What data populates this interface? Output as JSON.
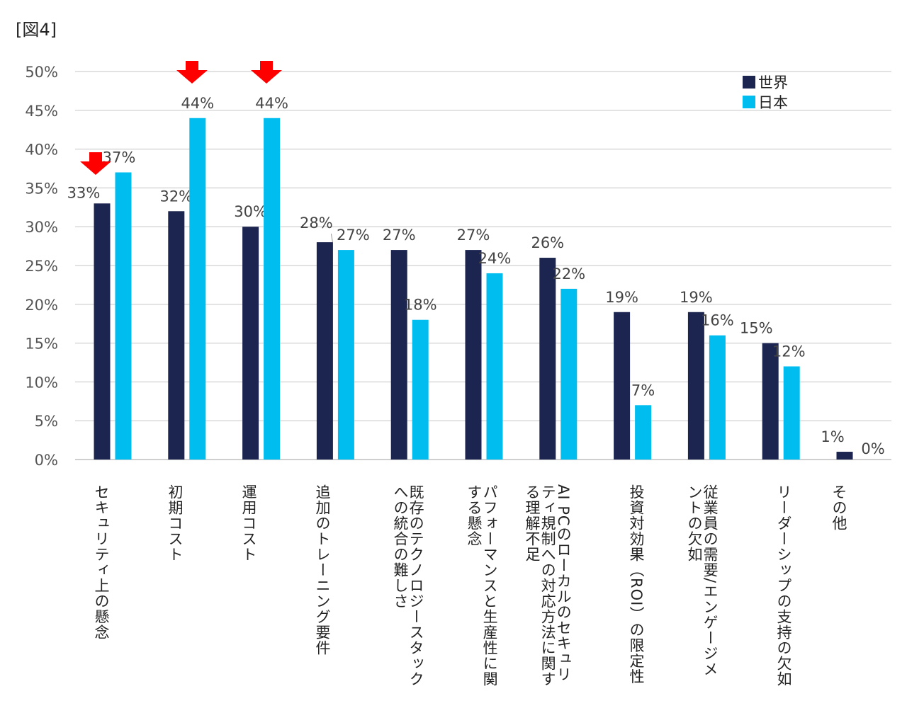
{
  "figure_label": "[図4]",
  "colors": {
    "world": "#1b2550",
    "japan": "#00bdf0",
    "grid": "#d9d9d9",
    "arrow": "#ff0000",
    "axis_text": "#555555"
  },
  "legend": {
    "world_label": "世界",
    "japan_label": "日本",
    "placement": "top-right"
  },
  "highlight_icon": "red-down-arrow-icon",
  "chart_data": {
    "type": "bar",
    "title": "",
    "xlabel": "",
    "ylabel": "",
    "ylim": [
      0,
      50
    ],
    "yticks": [
      "0%",
      "5%",
      "10%",
      "15%",
      "20%",
      "25%",
      "30%",
      "35%",
      "40%",
      "45%",
      "50%"
    ],
    "grid": true,
    "categories": [
      "セキュリティ上の懸念",
      "初期コスト",
      "運用コスト",
      "追加のトレーニング要件",
      "既存のテクノロジースタック\nへの統合の難しさ",
      "パフォーマンスと生産性に関\nする懸念",
      "AI PCのローカルのセキュリ\nティ規制への対応方法に関す\nる理解不足",
      "投資対効果（ROI）の限定性",
      "従業員の需要/エンゲージメ\nントの欠如",
      "リーダーシップの支持の欠如",
      "その他"
    ],
    "series": [
      {
        "name": "世界",
        "values": [
          33,
          32,
          30,
          28,
          27,
          27,
          26,
          19,
          19,
          15,
          1
        ],
        "labels": [
          "33%",
          "32%",
          "30%",
          "28%",
          "27%",
          "27%",
          "26%",
          "19%",
          "19%",
          "15%",
          "1%"
        ]
      },
      {
        "name": "日本",
        "values": [
          37,
          44,
          44,
          27,
          18,
          24,
          22,
          7,
          16,
          12,
          0
        ],
        "labels": [
          "37%",
          "44%",
          "44%",
          "27%",
          "18%",
          "24%",
          "22%",
          "7%",
          "16%",
          "12%",
          "0%"
        ]
      }
    ],
    "highlighted_categories": [
      0,
      1,
      2
    ]
  }
}
